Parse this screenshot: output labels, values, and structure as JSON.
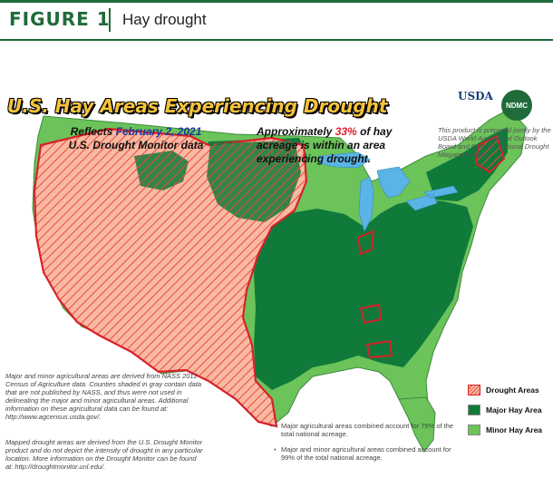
{
  "header": {
    "figure_label": "FIGURE 1",
    "figure_title": "Hay drought"
  },
  "map": {
    "title": "U.S. Hay Areas Experiencing Drought",
    "reflects_line1": "Reflects ",
    "reflects_date": "February 2, 2021",
    "reflects_line2": "U.S. Drought Monitor data",
    "approx_line1": "Approximately ",
    "approx_pct": "33%",
    "approx_line1b": " of hay",
    "approx_line2": "acreage is within an area",
    "approx_line3": "experiencing drought.",
    "prepared_text": "This product is prepared jointly by the USDA World Agricultural Outlook Board and the UNL National Drought Mitigation Center.",
    "logo_usda": "USDA",
    "logo_ndmc": "NDMC",
    "colors": {
      "major_hay": "#0f7a3a",
      "minor_hay": "#6bc35a",
      "drought": "#e84c3d",
      "drought_fill": "#f9b8a2",
      "water": "#5ab4e6",
      "tan": "#d9b06a"
    }
  },
  "legend": {
    "drought_label": "Drought Areas",
    "major_label": "Major Hay Area",
    "minor_label": "Minor Hay Area"
  },
  "notes": {
    "left1": "Major and minor agricultural areas are derived from NASS 2012 Census of Agriculture data.  Counties shaded in gray contain data that are not published by NASS, and thus were not used in delineating the major and minor agricultural areas.  Additional information on these agricultural data can be found at:  http://www.agcensus.usda.gov/.",
    "left2": "Mapped drought areas are derived from the U.S. Drought Monitor product and do not depict the intensity of drought in any particular location.  More information on the Drought Monitor can be found at:  http://droughtmonitor.unl.edu/.",
    "right1": "Major agricultural areas combined account for 75% of the total national acreage.",
    "right2": "Major and minor agricultural areas combined account for 99% of the total national acreage."
  }
}
